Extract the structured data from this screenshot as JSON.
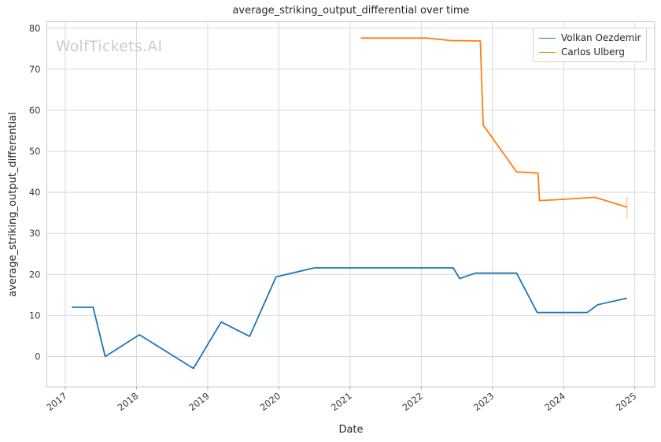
{
  "chart": {
    "watermark": "WolfTickets.AI",
    "legend": {
      "entries": [
        {
          "label": "Volkan Oezdemir",
          "color": "#1f77b4"
        },
        {
          "label": "Carlos Ulberg",
          "color": "#ff7f0e"
        }
      ]
    }
  },
  "chart_data": {
    "type": "line",
    "title": "average_striking_output_differential over time",
    "xlabel": "Date",
    "ylabel": "average_striking_output_differential",
    "x_ticks": [
      2017,
      2018,
      2019,
      2020,
      2021,
      2022,
      2023,
      2024,
      2025
    ],
    "y_ticks": [
      0,
      10,
      20,
      30,
      40,
      50,
      60,
      70,
      80
    ],
    "xlim": [
      2016.74,
      2025.28
    ],
    "ylim": [
      -7.4,
      81.6
    ],
    "grid": true,
    "legend_position": "upper right",
    "colors": {
      "grid": "#d9d9d9",
      "spine": "#c9c9c9",
      "tick_label": "#3b3b3b",
      "tick_mark": "#9a9a9a",
      "whisker": "rgba(255,127,14,0.4)"
    },
    "series": [
      {
        "name": "Volkan Oezdemir",
        "color": "#1f77b4",
        "points": [
          [
            2017.09,
            12.0
          ],
          [
            2017.39,
            12.0
          ],
          [
            2017.56,
            0.0
          ],
          [
            2018.04,
            5.3
          ],
          [
            2018.8,
            -2.9
          ],
          [
            2019.19,
            8.4
          ],
          [
            2019.59,
            4.9
          ],
          [
            2019.96,
            19.4
          ],
          [
            2020.5,
            21.6
          ],
          [
            2022.45,
            21.6
          ],
          [
            2022.54,
            19.0
          ],
          [
            2022.76,
            20.3
          ],
          [
            2023.34,
            20.3
          ],
          [
            2023.63,
            10.7
          ],
          [
            2024.33,
            10.7
          ],
          [
            2024.48,
            12.6
          ],
          [
            2024.89,
            14.2
          ]
        ]
      },
      {
        "name": "Carlos Ulberg",
        "color": "#ff7f0e",
        "points": [
          [
            2021.15,
            77.6
          ],
          [
            2022.08,
            77.6
          ],
          [
            2022.42,
            77.0
          ],
          [
            2022.83,
            76.9
          ],
          [
            2022.87,
            56.4
          ],
          [
            2023.34,
            45.0
          ],
          [
            2023.64,
            44.7
          ],
          [
            2023.66,
            38.0
          ],
          [
            2024.0,
            38.3
          ],
          [
            2024.44,
            38.8
          ],
          [
            2024.89,
            36.4
          ]
        ],
        "end_whisker": {
          "x": 2024.89,
          "y_from": 33.7,
          "y_to": 38.9
        }
      }
    ]
  }
}
